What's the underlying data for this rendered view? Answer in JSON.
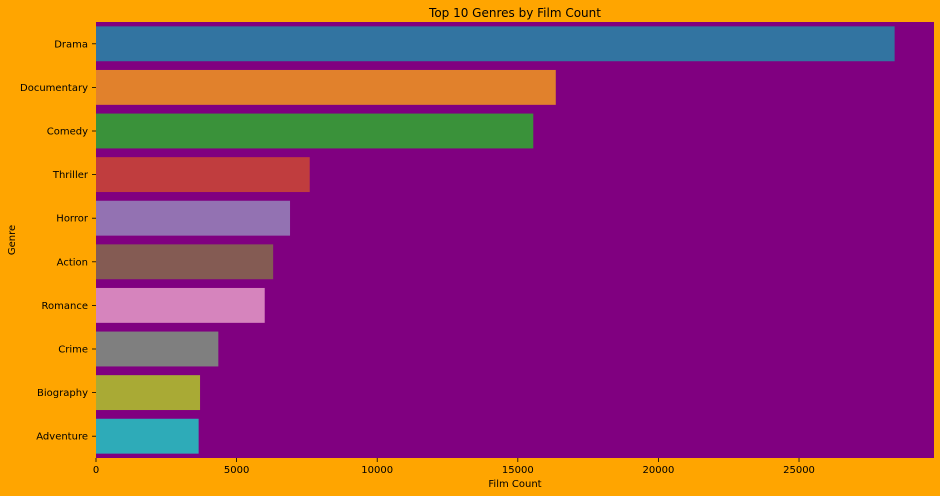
{
  "chart_data": {
    "type": "bar",
    "orientation": "horizontal",
    "title": "Top 10 Genres by Film Count",
    "xlabel": "Film Count",
    "ylabel": "Genre",
    "categories": [
      "Drama",
      "Documentary",
      "Comedy",
      "Thriller",
      "Horror",
      "Action",
      "Romance",
      "Crime",
      "Biography",
      "Adventure"
    ],
    "values": [
      28400,
      16350,
      15550,
      7600,
      6900,
      6300,
      6000,
      4350,
      3700,
      3650
    ],
    "colors": [
      "#3274a1",
      "#e1812c",
      "#3a923a",
      "#c03d3e",
      "#9372b2",
      "#845b53",
      "#d684bd",
      "#7f7f7f",
      "#a9aa35",
      "#2eabb8"
    ],
    "xlim": [
      0,
      29800
    ],
    "xticks": [
      0,
      5000,
      10000,
      15000,
      20000,
      25000
    ],
    "grid": false,
    "plot_background": "#800080",
    "figure_background": "#ffa500"
  }
}
